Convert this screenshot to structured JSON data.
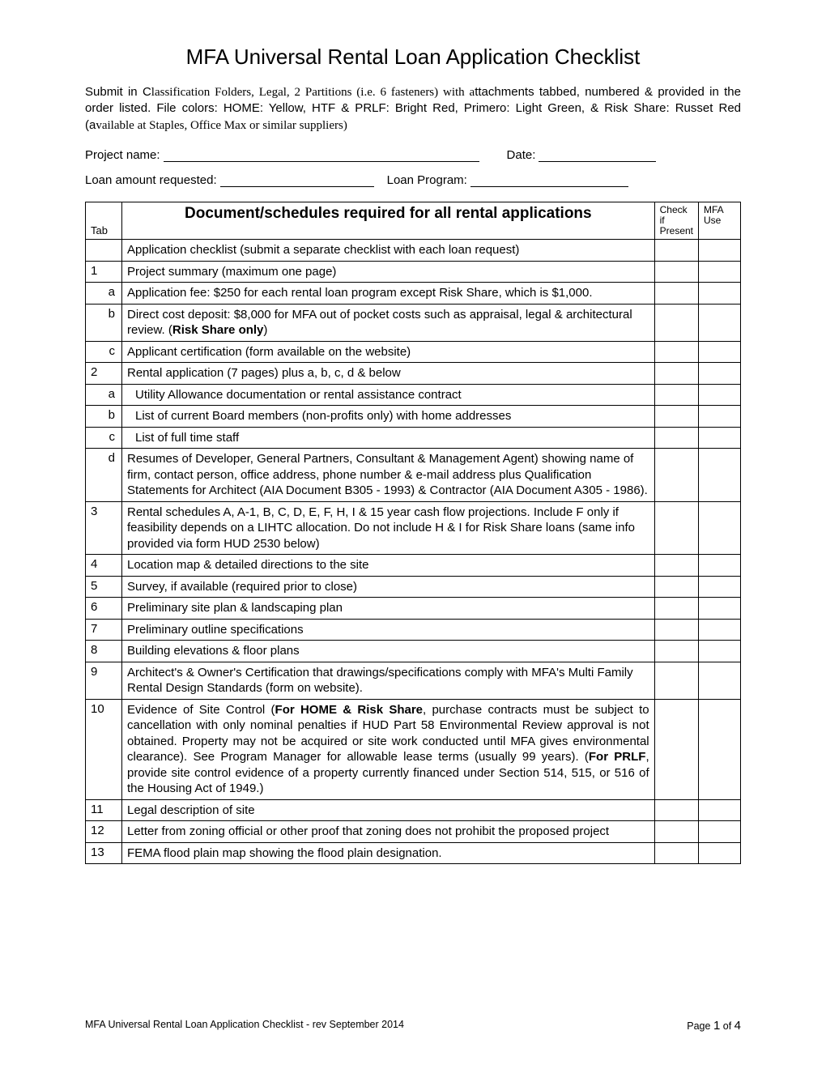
{
  "title": "MFA Universal Rental Loan Application Checklist",
  "intro": {
    "part1": "Submit in C",
    "part2_serif": "lassification Folders, Legal, 2 Partitions (i.e. 6 fasteners) with a",
    "part3": "ttachments tabbed, numbered & provided in the order listed. File colors: HOME: Yellow, HTF & PRLF: Bright Red, Primero: Light Green, & Risk Share: Russet Red (a",
    "part4_serif": "vailable at Staples, Office Max or similar suppliers)"
  },
  "fields": {
    "project_name_label": "Project name:",
    "date_label": "Date:",
    "loan_amount_label": "Loan amount requested:",
    "loan_program_label": "Loan Program:"
  },
  "headers": {
    "tab": "Tab",
    "doc": "Document/schedules required for all rental applications",
    "chk": "Check if Present",
    "mfa": "MFA Use"
  },
  "rows": [
    {
      "tab": "",
      "doc": "Application checklist (submit a separate checklist with each loan request)"
    },
    {
      "tab": "1",
      "doc": "Project summary (maximum one page)"
    },
    {
      "tab": "a",
      "sub": true,
      "doc": "Application fee: $250 for each rental loan program except Risk Share, which is $1,000."
    },
    {
      "tab": "b",
      "sub": true,
      "html": true,
      "doc": "Direct cost deposit: $8,000 for MFA out of pocket costs such as appraisal, legal & architectural review. (<b>Risk Share only</b>)"
    },
    {
      "tab": "c",
      "sub": true,
      "doc": "Applicant certification (form available on the website)"
    },
    {
      "tab": "2",
      "doc": "Rental application (7 pages) plus a, b, c, d & below"
    },
    {
      "tab": "a",
      "sub": true,
      "indent": true,
      "doc": "Utility Allowance documentation or rental assistance contract"
    },
    {
      "tab": "b",
      "sub": true,
      "indent": true,
      "doc": "List of current Board members (non-profits only) with home addresses"
    },
    {
      "tab": "c",
      "sub": true,
      "indent": true,
      "doc": "List of full time staff"
    },
    {
      "tab": "d",
      "sub": true,
      "doc": "Resumes of Developer, General Partners, Consultant & Management Agent) showing name of firm, contact person, office address, phone number & e-mail address plus Qualification Statements for Architect (AIA Document B305 - 1993) & Contractor (AIA Document A305 - 1986)."
    },
    {
      "tab": "3",
      "doc": "Rental schedules A, A-1, B, C, D, E, F, H, I & 15 year cash flow projections. Include F only if feasibility depends on a LIHTC allocation. Do not include H & I for Risk Share loans (same info provided via form HUD 2530 below)"
    },
    {
      "tab": "4",
      "doc": "Location map & detailed directions to the site"
    },
    {
      "tab": "5",
      "doc": "Survey, if available (required prior to close)"
    },
    {
      "tab": "6",
      "doc": "Preliminary site plan & landscaping plan"
    },
    {
      "tab": "7",
      "doc": "Preliminary outline specifications"
    },
    {
      "tab": "8",
      "doc": "Building elevations & floor plans"
    },
    {
      "tab": "9",
      "doc": "Architect's & Owner's Certification that drawings/specifications comply with MFA's Multi Family Rental Design Standards (form on website)."
    },
    {
      "tab": "10",
      "html": true,
      "justify": true,
      "doc": "Evidence of Site Control (<b>For HOME & Risk Share</b>, purchase contracts must be subject to cancellation with only nominal penalties if HUD Part 58 Environmental Review approval is not obtained. Property may not be acquired or site work conducted until MFA gives environmental clearance). See Program Manager for allowable lease terms (usually 99 years). (<b>For PRLF</b>, provide site control evidence of a property currently financed under Section 514, 515, or 516 of the Housing Act of 1949.)"
    },
    {
      "tab": "11",
      "doc": "Legal description of site"
    },
    {
      "tab": "12",
      "doc": "Letter from zoning official or other proof that zoning does not prohibit the proposed project"
    },
    {
      "tab": "13",
      "doc": "FEMA flood plain map showing the flood plain designation."
    }
  ],
  "footer": {
    "left": "MFA Universal Rental Loan Application Checklist - rev September 2014",
    "right_prefix": "Page ",
    "page_num": "1",
    "right_suffix": " of ",
    "total": "4"
  }
}
